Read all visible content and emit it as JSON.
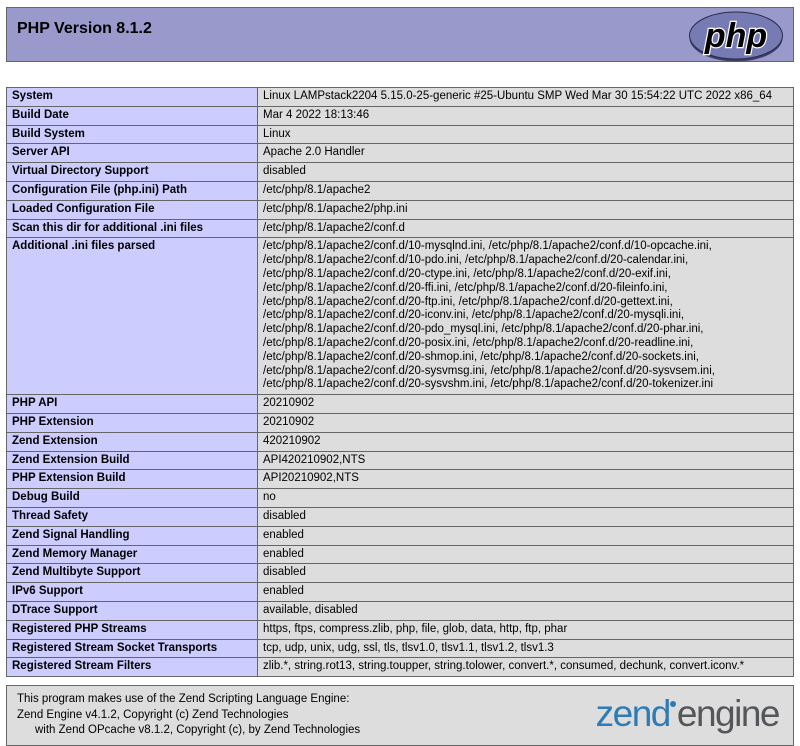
{
  "header": {
    "title": "PHP Version 8.1.2",
    "php_logo_text": "php"
  },
  "colors": {
    "header_bg": "#9999cc",
    "label_cell_bg": "#ccccff",
    "value_cell_bg": "#dddddd",
    "cell_border": "#666666",
    "php_logo_fill": "#777bb4",
    "php_logo_rim": "#3e4265",
    "zend_logo_blue": "#2f7cb5",
    "zend_logo_gray": "#55565c"
  },
  "table": {
    "rows": [
      {
        "label": "System",
        "value": "Linux LAMPstack2204 5.15.0-25-generic #25-Ubuntu SMP Wed Mar 30 15:54:22 UTC 2022 x86_64"
      },
      {
        "label": "Build Date",
        "value": "Mar 4 2022 18:13:46"
      },
      {
        "label": "Build System",
        "value": "Linux"
      },
      {
        "label": "Server API",
        "value": "Apache 2.0 Handler"
      },
      {
        "label": "Virtual Directory Support",
        "value": "disabled"
      },
      {
        "label": "Configuration File (php.ini) Path",
        "value": "/etc/php/8.1/apache2"
      },
      {
        "label": "Loaded Configuration File",
        "value": "/etc/php/8.1/apache2/php.ini"
      },
      {
        "label": "Scan this dir for additional .ini files",
        "value": "/etc/php/8.1/apache2/conf.d"
      },
      {
        "label": "Additional .ini files parsed",
        "value": "/etc/php/8.1/apache2/conf.d/10-mysqlnd.ini, /etc/php/8.1/apache2/conf.d/10-opcache.ini, /etc/php/8.1/apache2/conf.d/10-pdo.ini, /etc/php/8.1/apache2/conf.d/20-calendar.ini, /etc/php/8.1/apache2/conf.d/20-ctype.ini, /etc/php/8.1/apache2/conf.d/20-exif.ini, /etc/php/8.1/apache2/conf.d/20-ffi.ini, /etc/php/8.1/apache2/conf.d/20-fileinfo.ini, /etc/php/8.1/apache2/conf.d/20-ftp.ini, /etc/php/8.1/apache2/conf.d/20-gettext.ini, /etc/php/8.1/apache2/conf.d/20-iconv.ini, /etc/php/8.1/apache2/conf.d/20-mysqli.ini, /etc/php/8.1/apache2/conf.d/20-pdo_mysql.ini, /etc/php/8.1/apache2/conf.d/20-phar.ini, /etc/php/8.1/apache2/conf.d/20-posix.ini, /etc/php/8.1/apache2/conf.d/20-readline.ini, /etc/php/8.1/apache2/conf.d/20-shmop.ini, /etc/php/8.1/apache2/conf.d/20-sockets.ini, /etc/php/8.1/apache2/conf.d/20-sysvmsg.ini, /etc/php/8.1/apache2/conf.d/20-sysvsem.ini, /etc/php/8.1/apache2/conf.d/20-sysvshm.ini, /etc/php/8.1/apache2/conf.d/20-tokenizer.ini"
      },
      {
        "label": "PHP API",
        "value": "20210902"
      },
      {
        "label": "PHP Extension",
        "value": "20210902"
      },
      {
        "label": "Zend Extension",
        "value": "420210902"
      },
      {
        "label": "Zend Extension Build",
        "value": "API420210902,NTS"
      },
      {
        "label": "PHP Extension Build",
        "value": "API20210902,NTS"
      },
      {
        "label": "Debug Build",
        "value": "no"
      },
      {
        "label": "Thread Safety",
        "value": "disabled"
      },
      {
        "label": "Zend Signal Handling",
        "value": "enabled"
      },
      {
        "label": "Zend Memory Manager",
        "value": "enabled"
      },
      {
        "label": "Zend Multibyte Support",
        "value": "disabled"
      },
      {
        "label": "IPv6 Support",
        "value": "enabled"
      },
      {
        "label": "DTrace Support",
        "value": "available, disabled"
      },
      {
        "label": "Registered PHP Streams",
        "value": "https, ftps, compress.zlib, php, file, glob, data, http, ftp, phar"
      },
      {
        "label": "Registered Stream Socket Transports",
        "value": "tcp, udp, unix, udg, ssl, tls, tlsv1.0, tlsv1.1, tlsv1.2, tlsv1.3"
      },
      {
        "label": "Registered Stream Filters",
        "value": "zlib.*, string.rot13, string.toupper, string.tolower, convert.*, consumed, dechunk, convert.iconv.*"
      }
    ]
  },
  "footer": {
    "line1": "This program makes use of the Zend Scripting Language Engine:",
    "line2": "Zend Engine v4.1.2, Copyright (c) Zend Technologies",
    "line3": "with Zend OPcache v8.1.2, Copyright (c), by Zend Technologies",
    "zend_logo": {
      "zend": "zend",
      "engine": "engine"
    }
  }
}
